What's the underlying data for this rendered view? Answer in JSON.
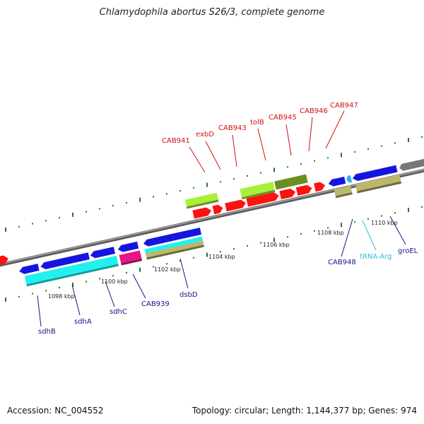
{
  "title": "Chlamydophila abortus S26/3, complete genome",
  "footer": {
    "accession": "Accession: NC_004552",
    "summary": "Topology: circular; Length: 1,144,377 bp; Genes: 974"
  },
  "colors": {
    "backbone": "#8a8a8a",
    "tick": "#1f7a1f",
    "red": "#ff1111",
    "lime": "#a6f03a",
    "olive": "#6b8e23",
    "blue": "#1515e0",
    "cyan": "#22f0f0",
    "magenta": "#e8158a",
    "khaki": "#bdb76b",
    "gray": "#777777",
    "lightblue": "#33aaff",
    "label_red": "#d01010",
    "label_blue": "#14148c",
    "label_trna": "#33bbdd"
  },
  "scale_labels": [
    "1098 kbp",
    "1100 kbp",
    "1102 kbp",
    "1104 kbp",
    "1106 kbp",
    "1108 kbp",
    "1110 kbp"
  ],
  "upper_labels": [
    "CAB941",
    "exbD",
    "CAB943",
    "tolB",
    "CAB945",
    "CAB946",
    "CAB947"
  ],
  "lower_labels": [
    "sdhB",
    "sdhA",
    "sdhC",
    "CAB939",
    "dsbD",
    "CAB948",
    "tRNA-Arg",
    "groEL"
  ]
}
